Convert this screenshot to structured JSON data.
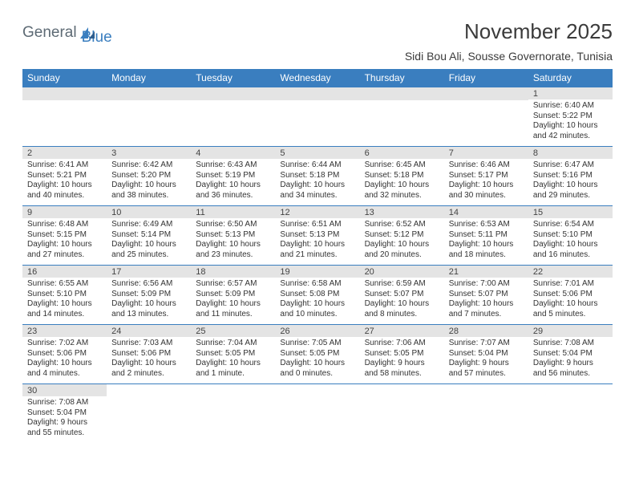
{
  "logo": {
    "part1": "General",
    "part2": "Blue"
  },
  "title": "November 2025",
  "subtitle": "Sidi Bou Ali, Sousse Governorate, Tunisia",
  "colors": {
    "header_bg": "#3a7ebf",
    "bar_bg": "#e4e4e4",
    "border": "#3a7ebf"
  },
  "weekdays": [
    "Sunday",
    "Monday",
    "Tuesday",
    "Wednesday",
    "Thursday",
    "Friday",
    "Saturday"
  ],
  "weeks": [
    [
      null,
      null,
      null,
      null,
      null,
      null,
      {
        "n": "1",
        "sr": "6:40 AM",
        "ss": "5:22 PM",
        "dl": "10 hours and 42 minutes."
      }
    ],
    [
      {
        "n": "2",
        "sr": "6:41 AM",
        "ss": "5:21 PM",
        "dl": "10 hours and 40 minutes."
      },
      {
        "n": "3",
        "sr": "6:42 AM",
        "ss": "5:20 PM",
        "dl": "10 hours and 38 minutes."
      },
      {
        "n": "4",
        "sr": "6:43 AM",
        "ss": "5:19 PM",
        "dl": "10 hours and 36 minutes."
      },
      {
        "n": "5",
        "sr": "6:44 AM",
        "ss": "5:18 PM",
        "dl": "10 hours and 34 minutes."
      },
      {
        "n": "6",
        "sr": "6:45 AM",
        "ss": "5:18 PM",
        "dl": "10 hours and 32 minutes."
      },
      {
        "n": "7",
        "sr": "6:46 AM",
        "ss": "5:17 PM",
        "dl": "10 hours and 30 minutes."
      },
      {
        "n": "8",
        "sr": "6:47 AM",
        "ss": "5:16 PM",
        "dl": "10 hours and 29 minutes."
      }
    ],
    [
      {
        "n": "9",
        "sr": "6:48 AM",
        "ss": "5:15 PM",
        "dl": "10 hours and 27 minutes."
      },
      {
        "n": "10",
        "sr": "6:49 AM",
        "ss": "5:14 PM",
        "dl": "10 hours and 25 minutes."
      },
      {
        "n": "11",
        "sr": "6:50 AM",
        "ss": "5:13 PM",
        "dl": "10 hours and 23 minutes."
      },
      {
        "n": "12",
        "sr": "6:51 AM",
        "ss": "5:13 PM",
        "dl": "10 hours and 21 minutes."
      },
      {
        "n": "13",
        "sr": "6:52 AM",
        "ss": "5:12 PM",
        "dl": "10 hours and 20 minutes."
      },
      {
        "n": "14",
        "sr": "6:53 AM",
        "ss": "5:11 PM",
        "dl": "10 hours and 18 minutes."
      },
      {
        "n": "15",
        "sr": "6:54 AM",
        "ss": "5:10 PM",
        "dl": "10 hours and 16 minutes."
      }
    ],
    [
      {
        "n": "16",
        "sr": "6:55 AM",
        "ss": "5:10 PM",
        "dl": "10 hours and 14 minutes."
      },
      {
        "n": "17",
        "sr": "6:56 AM",
        "ss": "5:09 PM",
        "dl": "10 hours and 13 minutes."
      },
      {
        "n": "18",
        "sr": "6:57 AM",
        "ss": "5:09 PM",
        "dl": "10 hours and 11 minutes."
      },
      {
        "n": "19",
        "sr": "6:58 AM",
        "ss": "5:08 PM",
        "dl": "10 hours and 10 minutes."
      },
      {
        "n": "20",
        "sr": "6:59 AM",
        "ss": "5:07 PM",
        "dl": "10 hours and 8 minutes."
      },
      {
        "n": "21",
        "sr": "7:00 AM",
        "ss": "5:07 PM",
        "dl": "10 hours and 7 minutes."
      },
      {
        "n": "22",
        "sr": "7:01 AM",
        "ss": "5:06 PM",
        "dl": "10 hours and 5 minutes."
      }
    ],
    [
      {
        "n": "23",
        "sr": "7:02 AM",
        "ss": "5:06 PM",
        "dl": "10 hours and 4 minutes."
      },
      {
        "n": "24",
        "sr": "7:03 AM",
        "ss": "5:06 PM",
        "dl": "10 hours and 2 minutes."
      },
      {
        "n": "25",
        "sr": "7:04 AM",
        "ss": "5:05 PM",
        "dl": "10 hours and 1 minute."
      },
      {
        "n": "26",
        "sr": "7:05 AM",
        "ss": "5:05 PM",
        "dl": "10 hours and 0 minutes."
      },
      {
        "n": "27",
        "sr": "7:06 AM",
        "ss": "5:05 PM",
        "dl": "9 hours and 58 minutes."
      },
      {
        "n": "28",
        "sr": "7:07 AM",
        "ss": "5:04 PM",
        "dl": "9 hours and 57 minutes."
      },
      {
        "n": "29",
        "sr": "7:08 AM",
        "ss": "5:04 PM",
        "dl": "9 hours and 56 minutes."
      }
    ],
    [
      {
        "n": "30",
        "sr": "7:08 AM",
        "ss": "5:04 PM",
        "dl": "9 hours and 55 minutes."
      },
      null,
      null,
      null,
      null,
      null,
      null
    ]
  ],
  "labels": {
    "sunrise": "Sunrise: ",
    "sunset": "Sunset: ",
    "daylight": "Daylight: "
  }
}
